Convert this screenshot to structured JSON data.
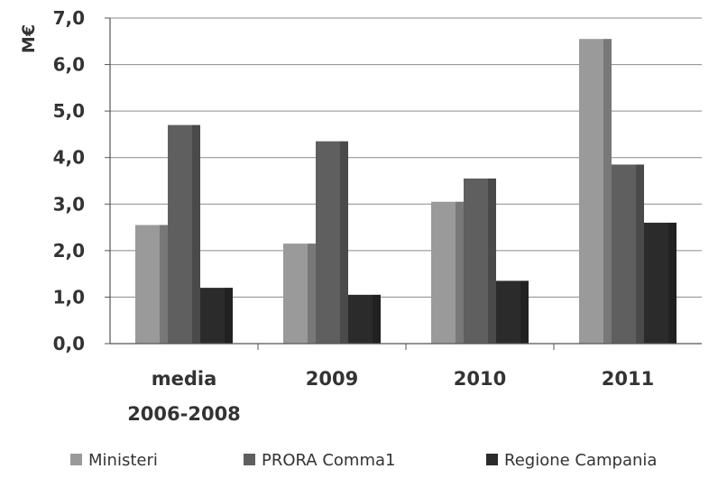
{
  "chart_data": {
    "type": "bar",
    "ylabel": "M€",
    "ylim": [
      0,
      7
    ],
    "yticks": [
      "0,0",
      "1,0",
      "2,0",
      "3,0",
      "4,0",
      "5,0",
      "6,0",
      "7,0"
    ],
    "grid": true,
    "legend_position": "bottom",
    "categories": [
      {
        "line1": "media",
        "line2": "2006-2008"
      },
      {
        "line1": "2009",
        "line2": ""
      },
      {
        "line1": "2010",
        "line2": ""
      },
      {
        "line1": "2011",
        "line2": ""
      }
    ],
    "series": [
      {
        "name": "Ministeri",
        "color": "#9a9a9a",
        "values": [
          2.55,
          2.15,
          3.05,
          6.55
        ]
      },
      {
        "name": "PRORA Comma1",
        "color": "#5f5f5f",
        "values": [
          4.7,
          4.35,
          3.55,
          3.85
        ]
      },
      {
        "name": "Regione Campania",
        "color": "#2b2b2b",
        "values": [
          1.2,
          1.05,
          1.35,
          2.6
        ]
      }
    ]
  }
}
